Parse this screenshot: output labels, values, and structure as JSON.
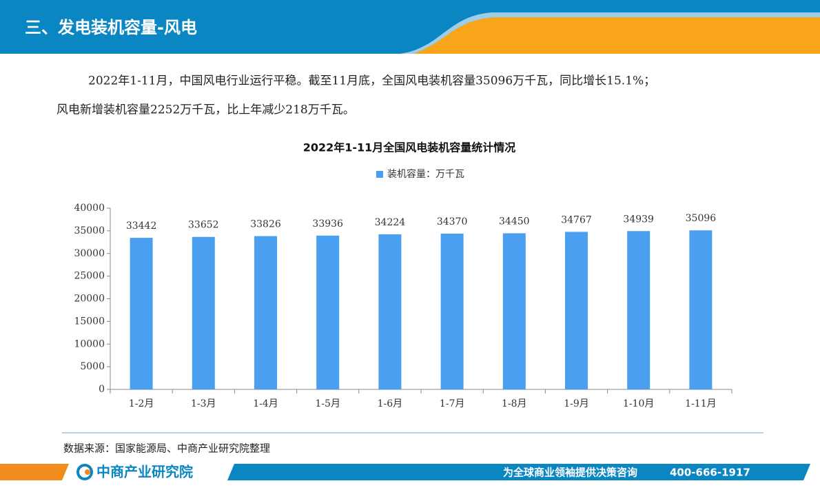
{
  "header": {
    "title": "三、发电装机容量-风电"
  },
  "paragraph": {
    "lines": [
      "2022年1-11月，中国风电行业运行平稳。截至11月底，全国风电装机容量35096万千瓦，同比增长15.1%；",
      "风电新增装机容量2252万千瓦，比上年减少218万千瓦。"
    ]
  },
  "chart_data": {
    "type": "bar",
    "title": "2022年1-11月全国风电装机容量统计情况",
    "categories": [
      "1-2月",
      "1-3月",
      "1-4月",
      "1-5月",
      "1-6月",
      "1-7月",
      "1-8月",
      "1-9月",
      "1-10月",
      "1-11月"
    ],
    "series": [
      {
        "name": "装机容量：万千瓦",
        "color": "#4a9ff0",
        "values": [
          33442,
          33652,
          33826,
          33936,
          34224,
          34370,
          34450,
          34767,
          34939,
          35096
        ]
      }
    ],
    "ylim": [
      0,
      40000
    ],
    "yticks": [
      0,
      5000,
      10000,
      15000,
      20000,
      25000,
      30000,
      35000,
      40000
    ],
    "legend": "top"
  },
  "source": "数据来源：国家能源局、中商产业研究院整理",
  "footer": {
    "logo": "中商产业研究院",
    "slogan": "为全球商业领袖提供决策咨询",
    "phone": "400-666-1917"
  }
}
